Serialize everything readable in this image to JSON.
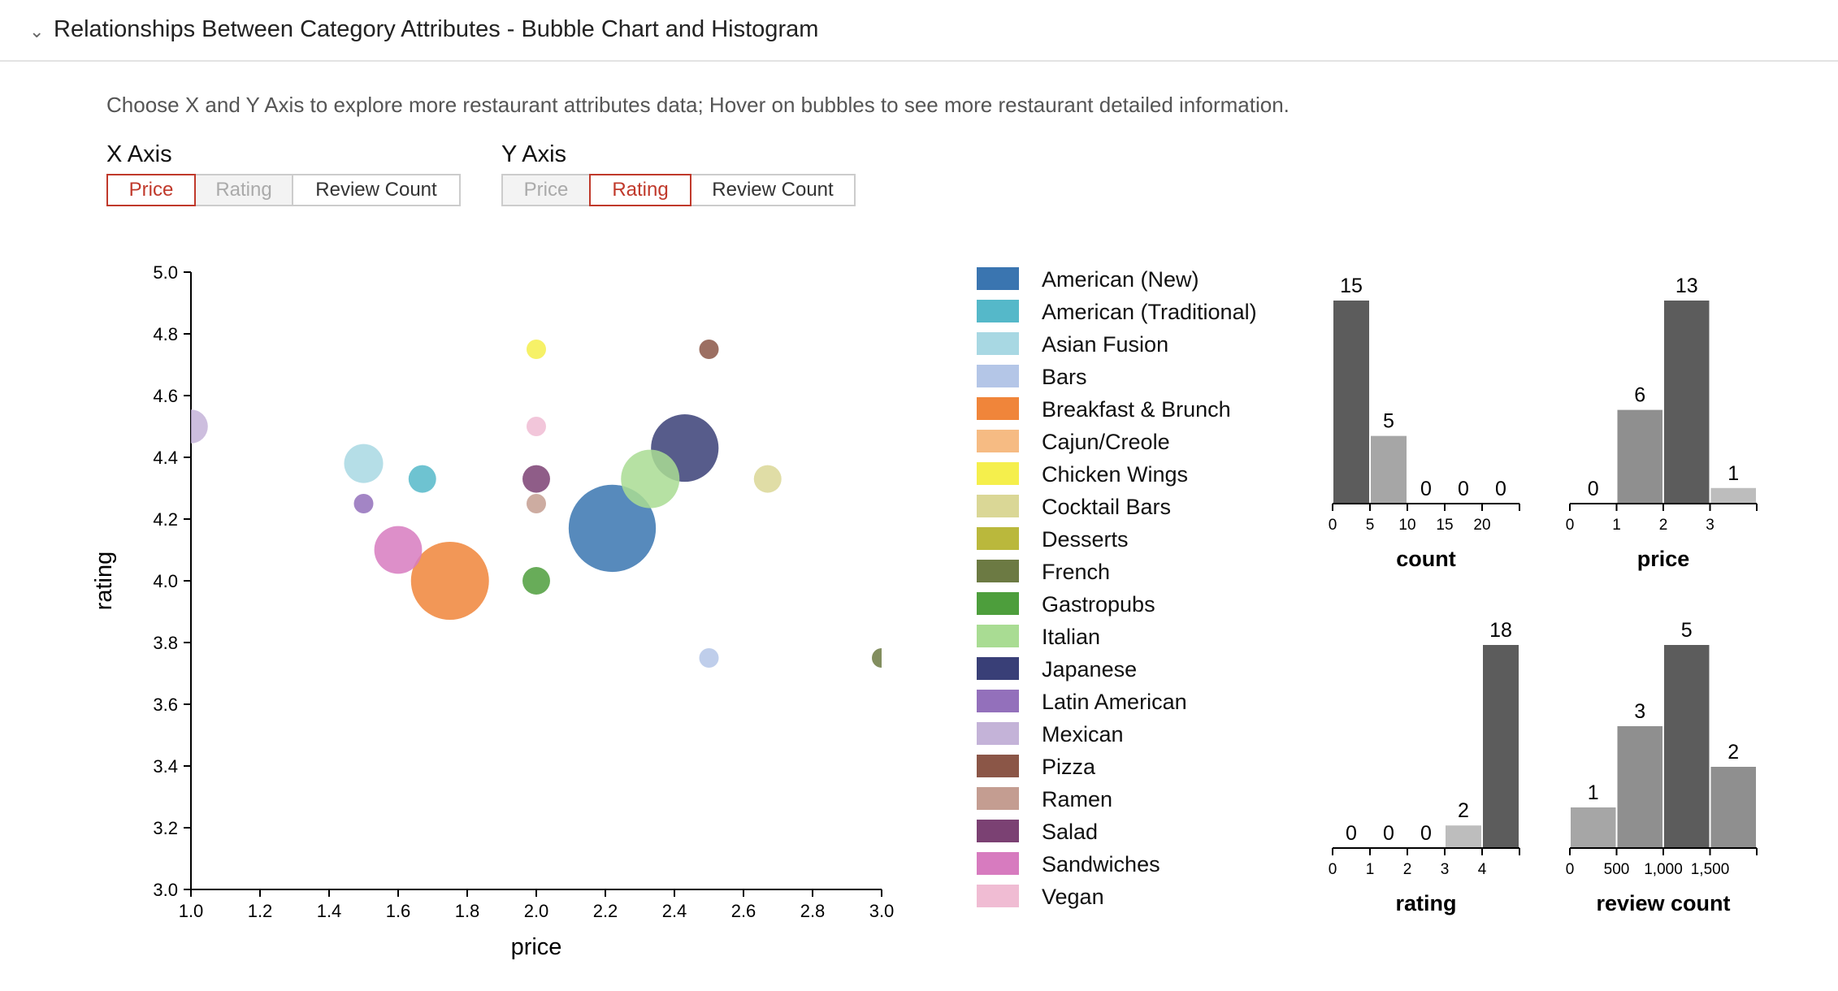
{
  "section": {
    "title": "Relationships Between Category Attributes - Bubble Chart and Histogram"
  },
  "description": "Choose X and Y Axis to explore more restaurant attributes data; Hover on bubbles to see more restaurant detailed information.",
  "x_axis_selector": {
    "label": "X Axis",
    "options": [
      "Price",
      "Rating",
      "Review Count"
    ],
    "selected": "Price",
    "disabled": "Rating"
  },
  "y_axis_selector": {
    "label": "Y Axis",
    "options": [
      "Price",
      "Rating",
      "Review Count"
    ],
    "selected": "Rating",
    "disabled": "Price"
  },
  "colors": {
    "accent": "#c0392b"
  },
  "chart_data": [
    {
      "type": "scatter",
      "xlabel": "price",
      "ylabel": "rating",
      "xlim": [
        1.0,
        3.0
      ],
      "ylim": [
        3.0,
        5.0
      ],
      "x_ticks": [
        "1.0",
        "1.2",
        "1.4",
        "1.6",
        "1.8",
        "2.0",
        "2.2",
        "2.4",
        "2.6",
        "2.8",
        "3.0"
      ],
      "y_ticks": [
        "3.0",
        "3.2",
        "3.4",
        "3.6",
        "3.8",
        "4.0",
        "4.2",
        "4.4",
        "4.6",
        "4.8",
        "5.0"
      ],
      "legend": [
        {
          "name": "American (New)",
          "color": "#3a75b0"
        },
        {
          "name": "American (Traditional)",
          "color": "#55b8c9"
        },
        {
          "name": "Asian Fusion",
          "color": "#a8d8e3"
        },
        {
          "name": "Bars",
          "color": "#b4c6e7"
        },
        {
          "name": "Breakfast & Brunch",
          "color": "#f0853a"
        },
        {
          "name": "Cajun/Creole",
          "color": "#f6bb83"
        },
        {
          "name": "Chicken Wings",
          "color": "#f5ef4c"
        },
        {
          "name": "Cocktail Bars",
          "color": "#dad796"
        },
        {
          "name": "Desserts",
          "color": "#bab83c"
        },
        {
          "name": "French",
          "color": "#6c7a43"
        },
        {
          "name": "Gastropubs",
          "color": "#4d9e3c"
        },
        {
          "name": "Italian",
          "color": "#a9dc93"
        },
        {
          "name": "Japanese",
          "color": "#393f77"
        },
        {
          "name": "Latin American",
          "color": "#9370bb"
        },
        {
          "name": "Mexican",
          "color": "#c4b3d8"
        },
        {
          "name": "Pizza",
          "color": "#8b5647"
        },
        {
          "name": "Ramen",
          "color": "#c49d91"
        },
        {
          "name": "Salad",
          "color": "#7b4173"
        },
        {
          "name": "Sandwiches",
          "color": "#d77bbf"
        },
        {
          "name": "Vegan",
          "color": "#f0bcd3"
        }
      ],
      "points": [
        {
          "category": "Mexican",
          "x": 1.0,
          "y": 4.5,
          "size": 3
        },
        {
          "category": "Asian Fusion",
          "x": 1.5,
          "y": 4.38,
          "size": 4
        },
        {
          "category": "Latin American",
          "x": 1.5,
          "y": 4.25,
          "size": 1
        },
        {
          "category": "American (Traditional)",
          "x": 1.67,
          "y": 4.33,
          "size": 2
        },
        {
          "category": "Sandwiches",
          "x": 1.6,
          "y": 4.1,
          "size": 6
        },
        {
          "category": "Breakfast & Brunch",
          "x": 1.75,
          "y": 4.0,
          "size": 16
        },
        {
          "category": "Chicken Wings",
          "x": 2.0,
          "y": 4.75,
          "size": 1
        },
        {
          "category": "Vegan",
          "x": 2.0,
          "y": 4.5,
          "size": 1
        },
        {
          "category": "Salad",
          "x": 2.0,
          "y": 4.33,
          "size": 2
        },
        {
          "category": "Ramen",
          "x": 2.0,
          "y": 4.25,
          "size": 1
        },
        {
          "category": "Gastropubs",
          "x": 2.0,
          "y": 4.0,
          "size": 2
        },
        {
          "category": "American (New)",
          "x": 2.22,
          "y": 4.17,
          "size": 20
        },
        {
          "category": "Italian",
          "x": 2.33,
          "y": 4.33,
          "size": 9
        },
        {
          "category": "Japanese",
          "x": 2.43,
          "y": 4.43,
          "size": 12
        },
        {
          "category": "Pizza",
          "x": 2.5,
          "y": 4.75,
          "size": 1
        },
        {
          "category": "Bars",
          "x": 2.5,
          "y": 3.75,
          "size": 1
        },
        {
          "category": "Cocktail Bars",
          "x": 2.67,
          "y": 4.33,
          "size": 2
        },
        {
          "category": "French",
          "x": 3.0,
          "y": 3.75,
          "size": 1
        }
      ]
    },
    {
      "type": "bar",
      "xlabel": "count",
      "ticks": [
        "0",
        "5",
        "10",
        "15",
        "20"
      ],
      "tick_values": [
        0,
        5,
        10,
        15,
        20
      ],
      "domain": [
        0,
        25
      ],
      "bins": [
        {
          "x0": 0,
          "x1": 5,
          "value": 15,
          "label": "15"
        },
        {
          "x0": 5,
          "x1": 10,
          "value": 5,
          "label": "5"
        },
        {
          "x0": 10,
          "x1": 15,
          "value": 0,
          "label": "0"
        },
        {
          "x0": 15,
          "x1": 20,
          "value": 0,
          "label": "0"
        },
        {
          "x0": 20,
          "x1": 25,
          "value": 0,
          "label": "0"
        }
      ]
    },
    {
      "type": "bar",
      "xlabel": "price",
      "ticks": [
        "0",
        "1",
        "2",
        "3"
      ],
      "tick_values": [
        0,
        1,
        2,
        3
      ],
      "domain": [
        0,
        4
      ],
      "bins": [
        {
          "x0": 0,
          "x1": 1,
          "value": 0,
          "label": "0"
        },
        {
          "x0": 1,
          "x1": 2,
          "value": 6,
          "label": "6"
        },
        {
          "x0": 2,
          "x1": 3,
          "value": 13,
          "label": "13"
        },
        {
          "x0": 3,
          "x1": 4,
          "value": 1,
          "label": "1"
        }
      ]
    },
    {
      "type": "bar",
      "xlabel": "rating",
      "ticks": [
        "0",
        "1",
        "2",
        "3",
        "4"
      ],
      "tick_values": [
        0,
        1,
        2,
        3,
        4
      ],
      "domain": [
        0,
        5
      ],
      "bins": [
        {
          "x0": 0,
          "x1": 1,
          "value": 0,
          "label": "0"
        },
        {
          "x0": 1,
          "x1": 2,
          "value": 0,
          "label": "0"
        },
        {
          "x0": 2,
          "x1": 3,
          "value": 0,
          "label": "0"
        },
        {
          "x0": 3,
          "x1": 4,
          "value": 2,
          "label": "2"
        },
        {
          "x0": 4,
          "x1": 5,
          "value": 18,
          "label": "18"
        }
      ]
    },
    {
      "type": "bar",
      "xlabel": "review count",
      "ticks": [
        "0",
        "500",
        "1,000",
        "1,500"
      ],
      "tick_values": [
        0,
        500,
        1000,
        1500
      ],
      "domain": [
        0,
        2000
      ],
      "bins": [
        {
          "x0": 0,
          "x1": 500,
          "value": 1,
          "label": "1"
        },
        {
          "x0": 500,
          "x1": 1000,
          "value": 3,
          "label": "3"
        },
        {
          "x0": 1000,
          "x1": 1500,
          "value": 5,
          "label": "5"
        },
        {
          "x0": 1500,
          "x1": 2000,
          "value": 2,
          "label": "2"
        }
      ]
    }
  ]
}
